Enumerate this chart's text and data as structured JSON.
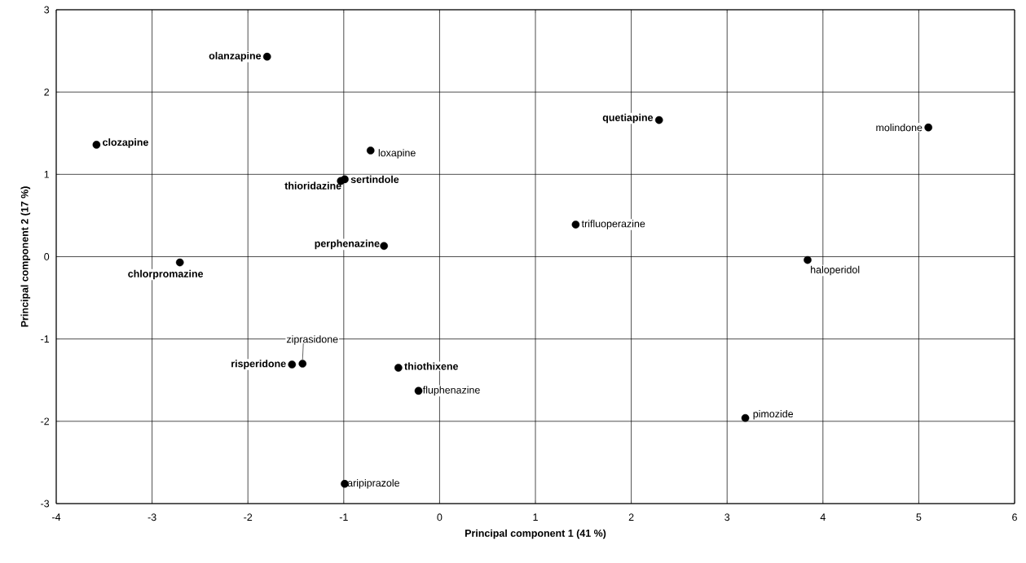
{
  "chart_data": {
    "type": "scatter",
    "xlabel": "Principal component 1 (41 %)",
    "ylabel": "Principal component 2  (17 %)",
    "x": [
      -1.8,
      -3.58,
      -0.72,
      -1.03,
      -0.99,
      -0.58,
      -2.71,
      2.29,
      5.1,
      1.42,
      3.84,
      -1.43,
      -1.54,
      -0.43,
      -0.22,
      -0.99,
      3.19
    ],
    "series": [
      {
        "color": "#000000",
        "values": [
          2.43,
          1.36,
          1.29,
          0.92,
          0.94,
          0.13,
          -0.07,
          1.66,
          1.57,
          0.39,
          -0.04,
          -1.3,
          -1.31,
          -1.35,
          -1.63,
          -2.76,
          -1.96
        ]
      }
    ],
    "annotations": [
      {
        "text": "olanzapine",
        "x": -1.8,
        "y": 2.43
      },
      {
        "text": "clozapine",
        "x": -3.58,
        "y": 1.36
      },
      {
        "text": "loxapine",
        "x": -0.72,
        "y": 1.29
      },
      {
        "text": "thioridazine",
        "x": -1.03,
        "y": 0.92
      },
      {
        "text": "sertindole",
        "x": -0.99,
        "y": 0.94
      },
      {
        "text": "perphenazine",
        "x": -0.58,
        "y": 0.13
      },
      {
        "text": "chlorpromazine",
        "x": -2.71,
        "y": -0.07
      },
      {
        "text": "quetiapine",
        "x": 2.29,
        "y": 1.66
      },
      {
        "text": "molindone",
        "x": 5.1,
        "y": 1.57
      },
      {
        "text": "trifluoperazine",
        "x": 1.42,
        "y": 0.39
      },
      {
        "text": "haloperidol",
        "x": 3.84,
        "y": -0.04
      },
      {
        "text": "ziprasidone",
        "x": -1.43,
        "y": -1.3
      },
      {
        "text": "risperidone",
        "x": -1.54,
        "y": -1.31
      },
      {
        "text": "thiothixene",
        "x": -0.43,
        "y": -1.35
      },
      {
        "text": "fluphenazine",
        "x": -0.22,
        "y": -1.63
      },
      {
        "text": "aripiprazole",
        "x": -0.99,
        "y": -2.76
      },
      {
        "text": "pimozide",
        "x": 3.19,
        "y": -1.96
      }
    ],
    "xlim": [
      -4,
      6
    ],
    "ylim": [
      -3,
      3
    ],
    "xticks": [
      -4,
      -3,
      -2,
      -1,
      0,
      1,
      2,
      3,
      4,
      5,
      6
    ],
    "yticks": [
      -3,
      -2,
      -1,
      0,
      1,
      2,
      3
    ],
    "grid": true,
    "marker": "circle",
    "legend": false
  }
}
